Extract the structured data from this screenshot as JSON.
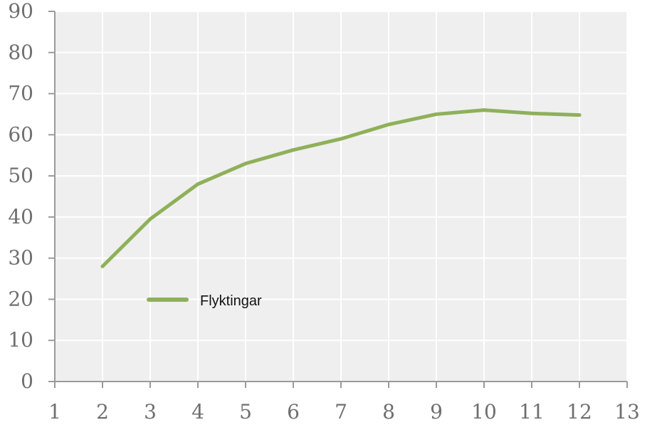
{
  "chart_data": {
    "type": "line",
    "title": "",
    "xlabel": "",
    "ylabel": "",
    "xlim": [
      1,
      13
    ],
    "ylim": [
      0,
      90
    ],
    "x_ticks": [
      "1",
      "2",
      "3",
      "4",
      "5",
      "6",
      "7",
      "8",
      "9",
      "10",
      "11",
      "12",
      "13"
    ],
    "y_ticks": [
      "0",
      "10",
      "20",
      "30",
      "40",
      "50",
      "60",
      "70",
      "80",
      "90"
    ],
    "grid": true,
    "legend_position": "middle-left",
    "series": [
      {
        "name": "Flyktingar",
        "color": "#8fb05a",
        "x": [
          2,
          3,
          4,
          5,
          6,
          7,
          8,
          9,
          10,
          11,
          12
        ],
        "y": [
          28,
          39.5,
          48,
          53,
          56.3,
          59,
          62.5,
          65,
          66,
          65.2,
          64.8
        ]
      }
    ]
  },
  "style": {
    "plot_bg": "#efefef",
    "grid_color": "#ffffff",
    "axis_color": "#9a9a9a",
    "tick_color": "#6f6f6f"
  }
}
